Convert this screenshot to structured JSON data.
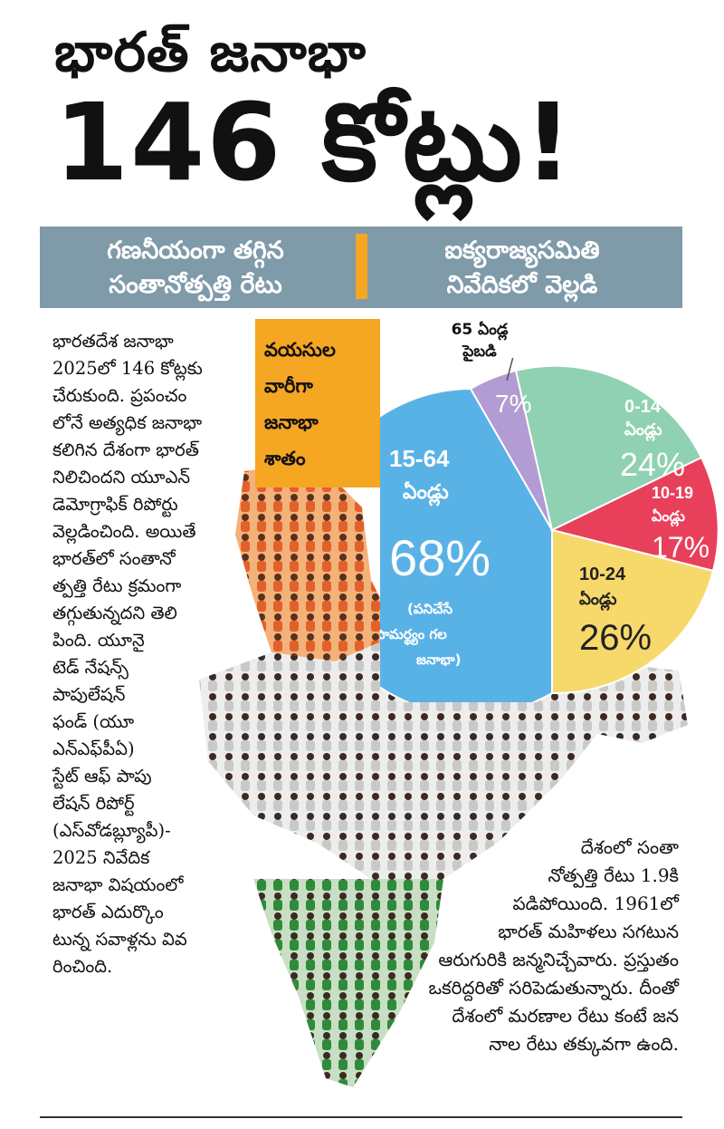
{
  "headline": {
    "line1": "భారత్ జనాభా",
    "line2": "146 కోట్లు!"
  },
  "banner": {
    "left": [
      "గణనీయంగా తగ్గిన",
      "సంతానోత్పత్తి రేటు"
    ],
    "right": [
      "ఐక్యరాజ్యసమితి",
      "నివేదికలో వెల్లడి"
    ],
    "divider_color": "#f5a623",
    "bg_color": "#7f9aa9"
  },
  "age_box": {
    "lines": [
      "వయసుల",
      "వారీగా",
      "జనాభా",
      "శాతం"
    ],
    "color": "#f5a623"
  },
  "pie": {
    "callout": [
      "65 ఏండ్ల",
      "పైబడి"
    ],
    "slices": [
      {
        "label_1": "0-14",
        "label_2": "ఏండ్లు",
        "value": "24%",
        "color": "#8fd1b2"
      },
      {
        "label_1": "10-19",
        "label_2": "ఏండ్లు",
        "value": "17%",
        "color": "#e8405a"
      },
      {
        "label_1": "10-24",
        "label_2": "ఏండ్లు",
        "value": "26%",
        "color": "#f7d86a"
      },
      {
        "label_1": "15-64",
        "label_2": "ఏండ్లు",
        "value": "68%",
        "note": [
          "(పనిచేసే",
          "సామర్థ్యం గల",
          "జనాభా)"
        ],
        "color": "#59b2e6"
      },
      {
        "label_1": "",
        "label_2": "",
        "value": "7%",
        "color": "#b39bd3"
      }
    ]
  },
  "article_left": [
    "భారతదేశ జనాభా",
    "2025లో 146 కోట్లకు",
    "చేరుకుంది. ప్రపంచం",
    "లోనే అత్యధిక జనాభా",
    "కలిగిన దేశంగా భారత్",
    "నిలిచిందని యూఎన్",
    "డెమోగ్రాఫిక్ రిపోర్టు",
    "వెల్లడించింది. అయితే",
    "భారత్‌లో సంతానో",
    "త్పత్తి రేటు క్రమంగా",
    "తగ్గుతున్నదని తెలి",
    "పింది. యూనై",
    "టెడ్ నేషన్స్",
    "పాపులేషన్",
    "ఫండ్ (యూ",
    "ఎన్‌ఎఫ్‌పీఏ)",
    "స్టేట్ ఆఫ్ పాపు",
    "లేషన్ రిపోర్ట్",
    "(ఎస్‌వోడబ్ల్యూపీ)-",
    "2025 నివేదిక",
    "జనాభా విషయంలో",
    "భారత్ ఎదుర్కొం",
    "టున్న సవాళ్లను వివ",
    "రించింది."
  ],
  "article_right": [
    "దేశంలో సంతా",
    "నోత్పత్తి రేటు 1.9కి",
    "పడిపోయింది. 1961లో",
    "భారత్ మహిళలు సగటున",
    "ఆరుగురికి జన్మనిచ్చేవారు. ప్రస్తుతం",
    "ఒకరిద్దరితో సరిపెడుతున్నారు. దీంతో",
    "దేశంలో మరణాల రేటు కంటే జన",
    "నాల రేటు తక్కువగా ఉంది."
  ]
}
